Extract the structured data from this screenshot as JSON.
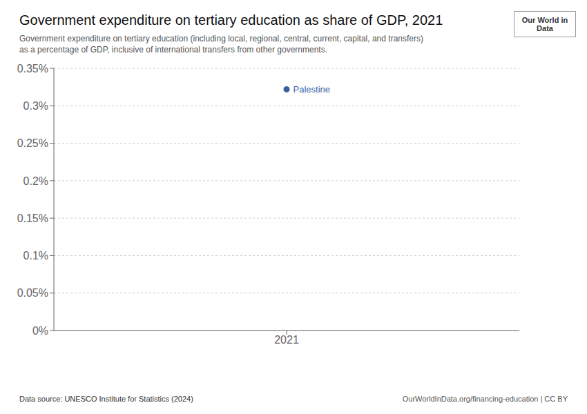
{
  "chart_data": {
    "type": "scatter",
    "title": "Government expenditure on tertiary education as share of GDP, 2021",
    "subtitle": [
      "Government expenditure on tertiary education (including local, regional, central, current, capital, and transfers)",
      "as a percentage of GDP, inclusive of international transfers from other governments."
    ],
    "x": [
      2021
    ],
    "series": [
      {
        "name": "Palestine",
        "color": "#3d5fa0",
        "values": [
          0.00322
        ]
      }
    ],
    "xlim": [
      2020.5,
      2021.5
    ],
    "xticks": [
      2021
    ],
    "ylim": [
      0.0,
      0.0035
    ],
    "yticks": [
      {
        "value": 0.0,
        "label": "0%"
      },
      {
        "value": 0.0005,
        "label": "0.05%"
      },
      {
        "value": 0.001,
        "label": "0.1%"
      },
      {
        "value": 0.0015,
        "label": "0.15%"
      },
      {
        "value": 0.002,
        "label": "0.2%"
      },
      {
        "value": 0.0025,
        "label": "0.25%"
      },
      {
        "value": 0.003,
        "label": "0.3%"
      },
      {
        "value": 0.0035,
        "label": "0.35%"
      }
    ],
    "grid": true,
    "annotations": [
      "Data source: UNESCO Institute for Statistics (2024)",
      "OurWorldInData.org/financing-education | CC BY",
      "Our World in Data"
    ]
  }
}
